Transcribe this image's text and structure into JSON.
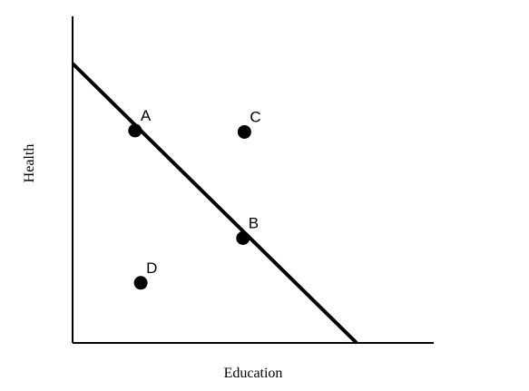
{
  "chart_data": {
    "type": "scatter",
    "title": "",
    "xlabel": "Education",
    "ylabel": "Health",
    "xlim": [
      0,
      100
    ],
    "ylim": [
      0,
      100
    ],
    "grid": false,
    "line": {
      "name": "frontier",
      "x": [
        0,
        100
      ],
      "y": [
        100,
        0
      ]
    },
    "points": [
      {
        "label": "A",
        "x": 22,
        "y": 76
      },
      {
        "label": "B",
        "x": 60,
        "y": 37.5
      },
      {
        "label": "C",
        "x": 60.5,
        "y": 75.5
      },
      {
        "label": "D",
        "x": 24,
        "y": 21.5
      }
    ]
  }
}
